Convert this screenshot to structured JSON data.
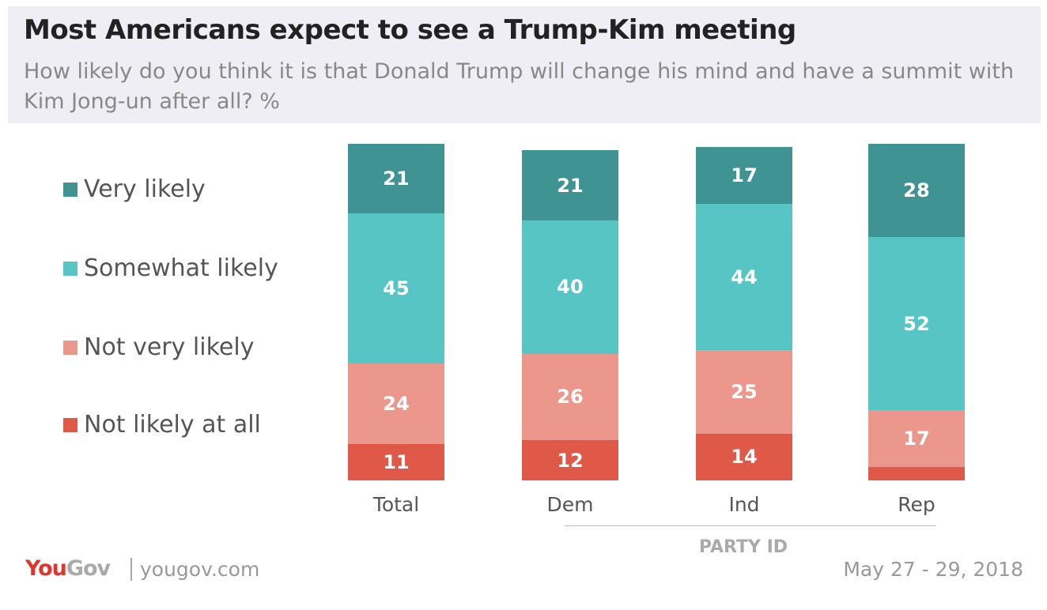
{
  "chart_data": {
    "type": "stacked-bar",
    "title": "Most Americans expect to see a Trump-Kim meeting",
    "subtitle": "How likely do you think it is that Donald Trump will change his mind and have a summit with Kim Jong-un after all? %",
    "categories": [
      "Total",
      "Dem",
      "Ind",
      "Rep"
    ],
    "group_label": "PARTY ID",
    "legend_placement": "left",
    "series": [
      {
        "name": "Very likely",
        "color": "#3f9392",
        "values": [
          21,
          21,
          17,
          28
        ]
      },
      {
        "name": "Somewhat likely",
        "color": "#57c5c3",
        "values": [
          45,
          40,
          44,
          52
        ]
      },
      {
        "name": "Not very likely",
        "color": "#ec978c",
        "values": [
          24,
          26,
          25,
          17
        ]
      },
      {
        "name": "Not likely at all",
        "color": "#e05848",
        "values": [
          11,
          12,
          14,
          4
        ]
      }
    ],
    "hidden_labels": [
      [
        3,
        3
      ]
    ]
  },
  "footer": {
    "brand": "YouGov",
    "site": "yougov.com",
    "date": "May 27 - 29, 2018"
  }
}
